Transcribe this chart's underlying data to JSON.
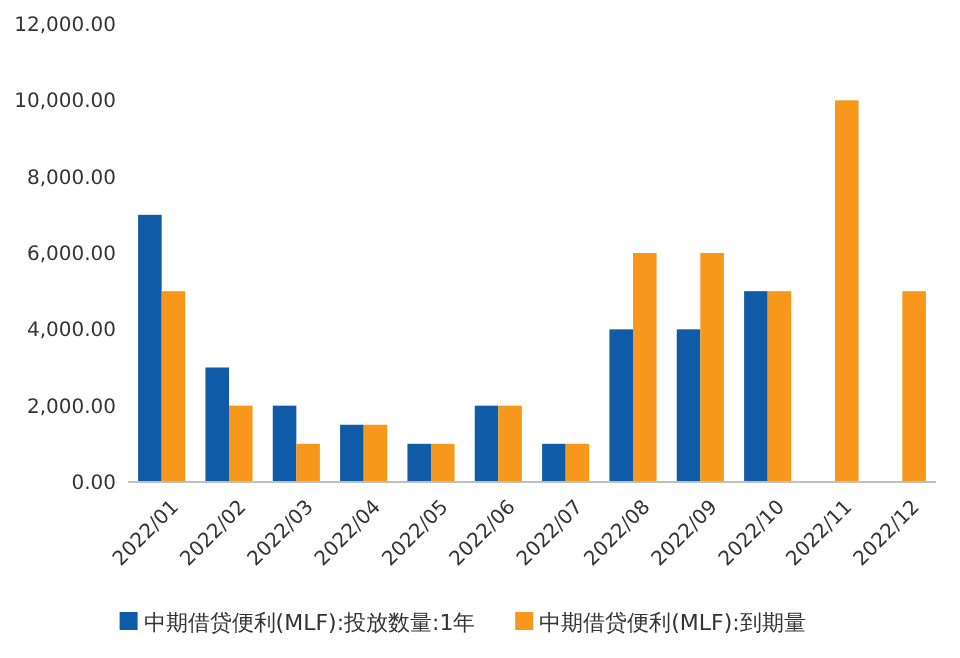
{
  "chart_data": {
    "type": "bar",
    "categories": [
      "2022/01",
      "2022/02",
      "2022/03",
      "2022/04",
      "2022/05",
      "2022/06",
      "2022/07",
      "2022/08",
      "2022/09",
      "2022/10",
      "2022/11",
      "2022/12"
    ],
    "series": [
      {
        "name": "中期借贷便利(MLF):投放数量:1年",
        "color": "#0f5ba7",
        "values": [
          7000,
          3000,
          2000,
          1500,
          1000,
          2000,
          1000,
          4000,
          4000,
          5000,
          null,
          null
        ]
      },
      {
        "name": "中期借贷便利(MLF):到期量",
        "color": "#f7981d",
        "values": [
          5000,
          2000,
          1000,
          1500,
          1000,
          2000,
          1000,
          6000,
          6000,
          5000,
          10000,
          5000
        ]
      }
    ],
    "ylim": [
      0,
      12000
    ],
    "yticks": [
      {
        "value": 0,
        "label": "0.00"
      },
      {
        "value": 2000,
        "label": "2,000.00"
      },
      {
        "value": 4000,
        "label": "4,000.00"
      },
      {
        "value": 6000,
        "label": "6,000.00"
      },
      {
        "value": 8000,
        "label": "8,000.00"
      },
      {
        "value": 10000,
        "label": "10,000.00"
      },
      {
        "value": 12000,
        "label": "12,000.00"
      }
    ],
    "grid": false,
    "legend": "bottom"
  }
}
